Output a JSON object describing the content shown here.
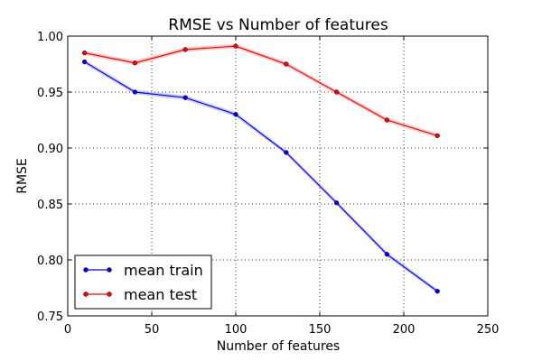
{
  "chart_data": {
    "type": "line",
    "title": "RMSE vs Number of features",
    "xlabel": "Number of features",
    "ylabel": "RMSE",
    "xlim": [
      0,
      250
    ],
    "ylim": [
      0.75,
      1.0
    ],
    "xticks": [
      "0",
      "50",
      "100",
      "150",
      "200",
      "250"
    ],
    "yticks": [
      "0.75",
      "0.80",
      "0.85",
      "0.90",
      "0.95",
      "1.00"
    ],
    "grid": true,
    "legend_position": "lower-left",
    "x": [
      10,
      40,
      70,
      100,
      130,
      160,
      190,
      220
    ],
    "series": [
      {
        "name": "mean train",
        "color": "#0000ff",
        "band_color": "#aaaaff",
        "values": [
          0.977,
          0.95,
          0.945,
          0.93,
          0.896,
          0.851,
          0.805,
          0.772
        ]
      },
      {
        "name": "mean test",
        "color": "#ff0000",
        "band_color": "#ffaaaa",
        "values": [
          0.985,
          0.976,
          0.988,
          0.991,
          0.975,
          0.95,
          0.925,
          0.911
        ]
      }
    ]
  }
}
